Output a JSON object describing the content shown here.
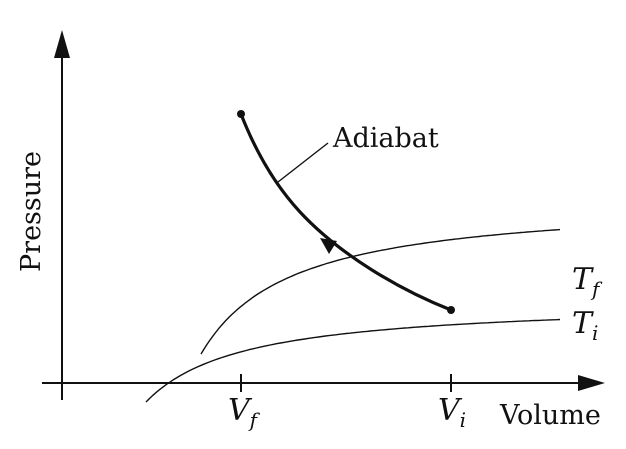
{
  "diagram": {
    "axes": {
      "x_label": "Volume",
      "y_label": "Pressure",
      "x_ticks": [
        {
          "symbol": "V",
          "subscript": "f"
        },
        {
          "symbol": "V",
          "subscript": "i"
        }
      ]
    },
    "curves": {
      "isotherm_final": {
        "symbol": "T",
        "subscript": "f"
      },
      "isotherm_initial": {
        "symbol": "T",
        "subscript": "i"
      },
      "adiabat": {
        "label": "Adiabat",
        "direction": "from V_i to V_f (compression)"
      }
    },
    "colors": {
      "stroke": "#111111",
      "background": "#ffffff"
    }
  }
}
